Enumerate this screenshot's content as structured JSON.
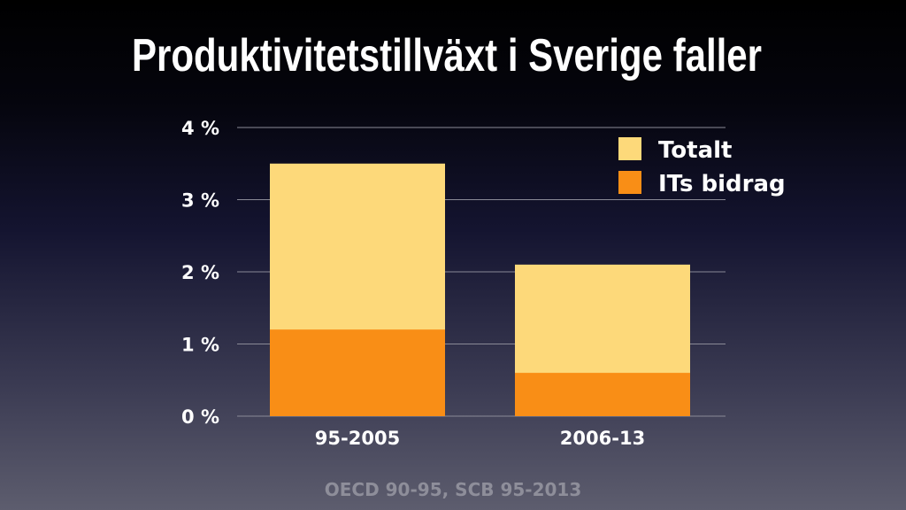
{
  "chart_data": {
    "type": "bar",
    "stacked": false,
    "overlapping": true,
    "title": "Produktivitetstillväxt i Sverige faller",
    "categories": [
      "95-2005",
      "2006-13"
    ],
    "series": [
      {
        "name": "Totalt",
        "values": [
          3.5,
          2.1
        ],
        "color": "#fdd97a"
      },
      {
        "name": "ITs bidrag",
        "values": [
          1.2,
          0.6
        ],
        "color": "#f98e16"
      }
    ],
    "yticks": [
      "0 %",
      "1 %",
      "2 %",
      "3 %",
      "4 %"
    ],
    "ylim": [
      0,
      4
    ],
    "grid": true,
    "legend": "top-right",
    "xlabel": "",
    "ylabel": "",
    "source": "OECD 90-95, SCB 95-2013"
  }
}
